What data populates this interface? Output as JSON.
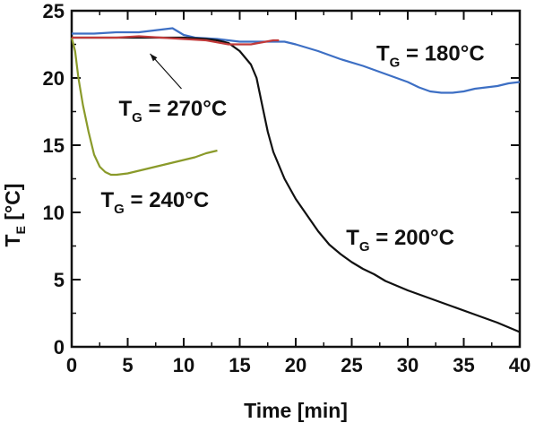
{
  "chart_data": {
    "type": "line",
    "xlabel": "Time [min]",
    "ylabel": {
      "main": "T",
      "sub": "E",
      "unit": " [°C]"
    },
    "xlim": [
      0,
      40
    ],
    "ylim": [
      0,
      25
    ],
    "xticks": [
      0,
      5,
      10,
      15,
      20,
      25,
      30,
      35,
      40
    ],
    "yticks": [
      0,
      5,
      10,
      15,
      20,
      25
    ],
    "grid": false,
    "series": [
      {
        "name": "T_G = 180°C",
        "color": "#3d6fc4",
        "x": [
          0,
          2,
          4,
          6,
          8,
          9,
          10,
          11,
          13,
          15,
          17,
          19,
          20,
          22,
          24,
          26,
          28,
          30,
          31,
          32,
          33,
          34,
          35,
          36,
          38,
          39,
          40
        ],
        "y": [
          23.3,
          23.3,
          23.4,
          23.4,
          23.6,
          23.7,
          23.2,
          23.0,
          22.9,
          22.7,
          22.7,
          22.7,
          22.5,
          22.0,
          21.4,
          20.9,
          20.3,
          19.7,
          19.3,
          19.0,
          18.9,
          18.9,
          19.0,
          19.2,
          19.4,
          19.6,
          19.7
        ]
      },
      {
        "name": "T_G = 200°C",
        "color": "#111111",
        "x": [
          0,
          2,
          4,
          6,
          8,
          10,
          12,
          13,
          14,
          15,
          16,
          16.5,
          17,
          17.5,
          18,
          19,
          20,
          21,
          22,
          23,
          24,
          25,
          26,
          27,
          28,
          30,
          32,
          34,
          36,
          38,
          40
        ],
        "y": [
          23.0,
          23.0,
          23.0,
          23.0,
          23.0,
          23.0,
          22.9,
          22.8,
          22.6,
          22.0,
          21.0,
          20.0,
          18.0,
          16.0,
          14.5,
          12.5,
          11.0,
          9.8,
          8.6,
          7.6,
          6.9,
          6.3,
          5.8,
          5.4,
          4.9,
          4.2,
          3.6,
          3.0,
          2.4,
          1.8,
          1.1
        ]
      },
      {
        "name": "T_G = 240°C",
        "color": "#8a9a2a",
        "x": [
          0,
          0.3,
          0.6,
          1.0,
          1.5,
          2.0,
          2.5,
          3.0,
          3.5,
          4.0,
          5,
          6,
          7,
          8,
          9,
          10,
          11,
          12,
          13
        ],
        "y": [
          23.0,
          22.0,
          20.0,
          18.0,
          16.0,
          14.3,
          13.4,
          13.0,
          12.8,
          12.8,
          12.9,
          13.1,
          13.3,
          13.5,
          13.7,
          13.9,
          14.1,
          14.4,
          14.6
        ]
      },
      {
        "name": "T_G = 270°C",
        "color": "#c23a3a",
        "x": [
          0,
          2,
          4,
          6,
          8,
          10,
          12,
          14,
          16,
          18,
          18.5
        ],
        "y": [
          23.0,
          23.0,
          23.0,
          23.1,
          23.0,
          22.9,
          22.8,
          22.5,
          22.5,
          22.8,
          22.8
        ]
      }
    ],
    "annotations": [
      {
        "main": "T",
        "sub": "G",
        "rest": " = 180°C",
        "x": 27.2,
        "y": 21.3
      },
      {
        "main": "T",
        "sub": "G",
        "rest": " = 270°C",
        "x": 4.2,
        "y": 17.2
      },
      {
        "main": "T",
        "sub": "G",
        "rest": " = 240°C",
        "x": 2.6,
        "y": 10.4
      },
      {
        "main": "T",
        "sub": "G",
        "rest": " = 200°C",
        "x": 24.5,
        "y": 7.6
      }
    ],
    "arrow": {
      "from": [
        9.8,
        19.2
      ],
      "to": [
        7.0,
        21.8
      ]
    }
  }
}
